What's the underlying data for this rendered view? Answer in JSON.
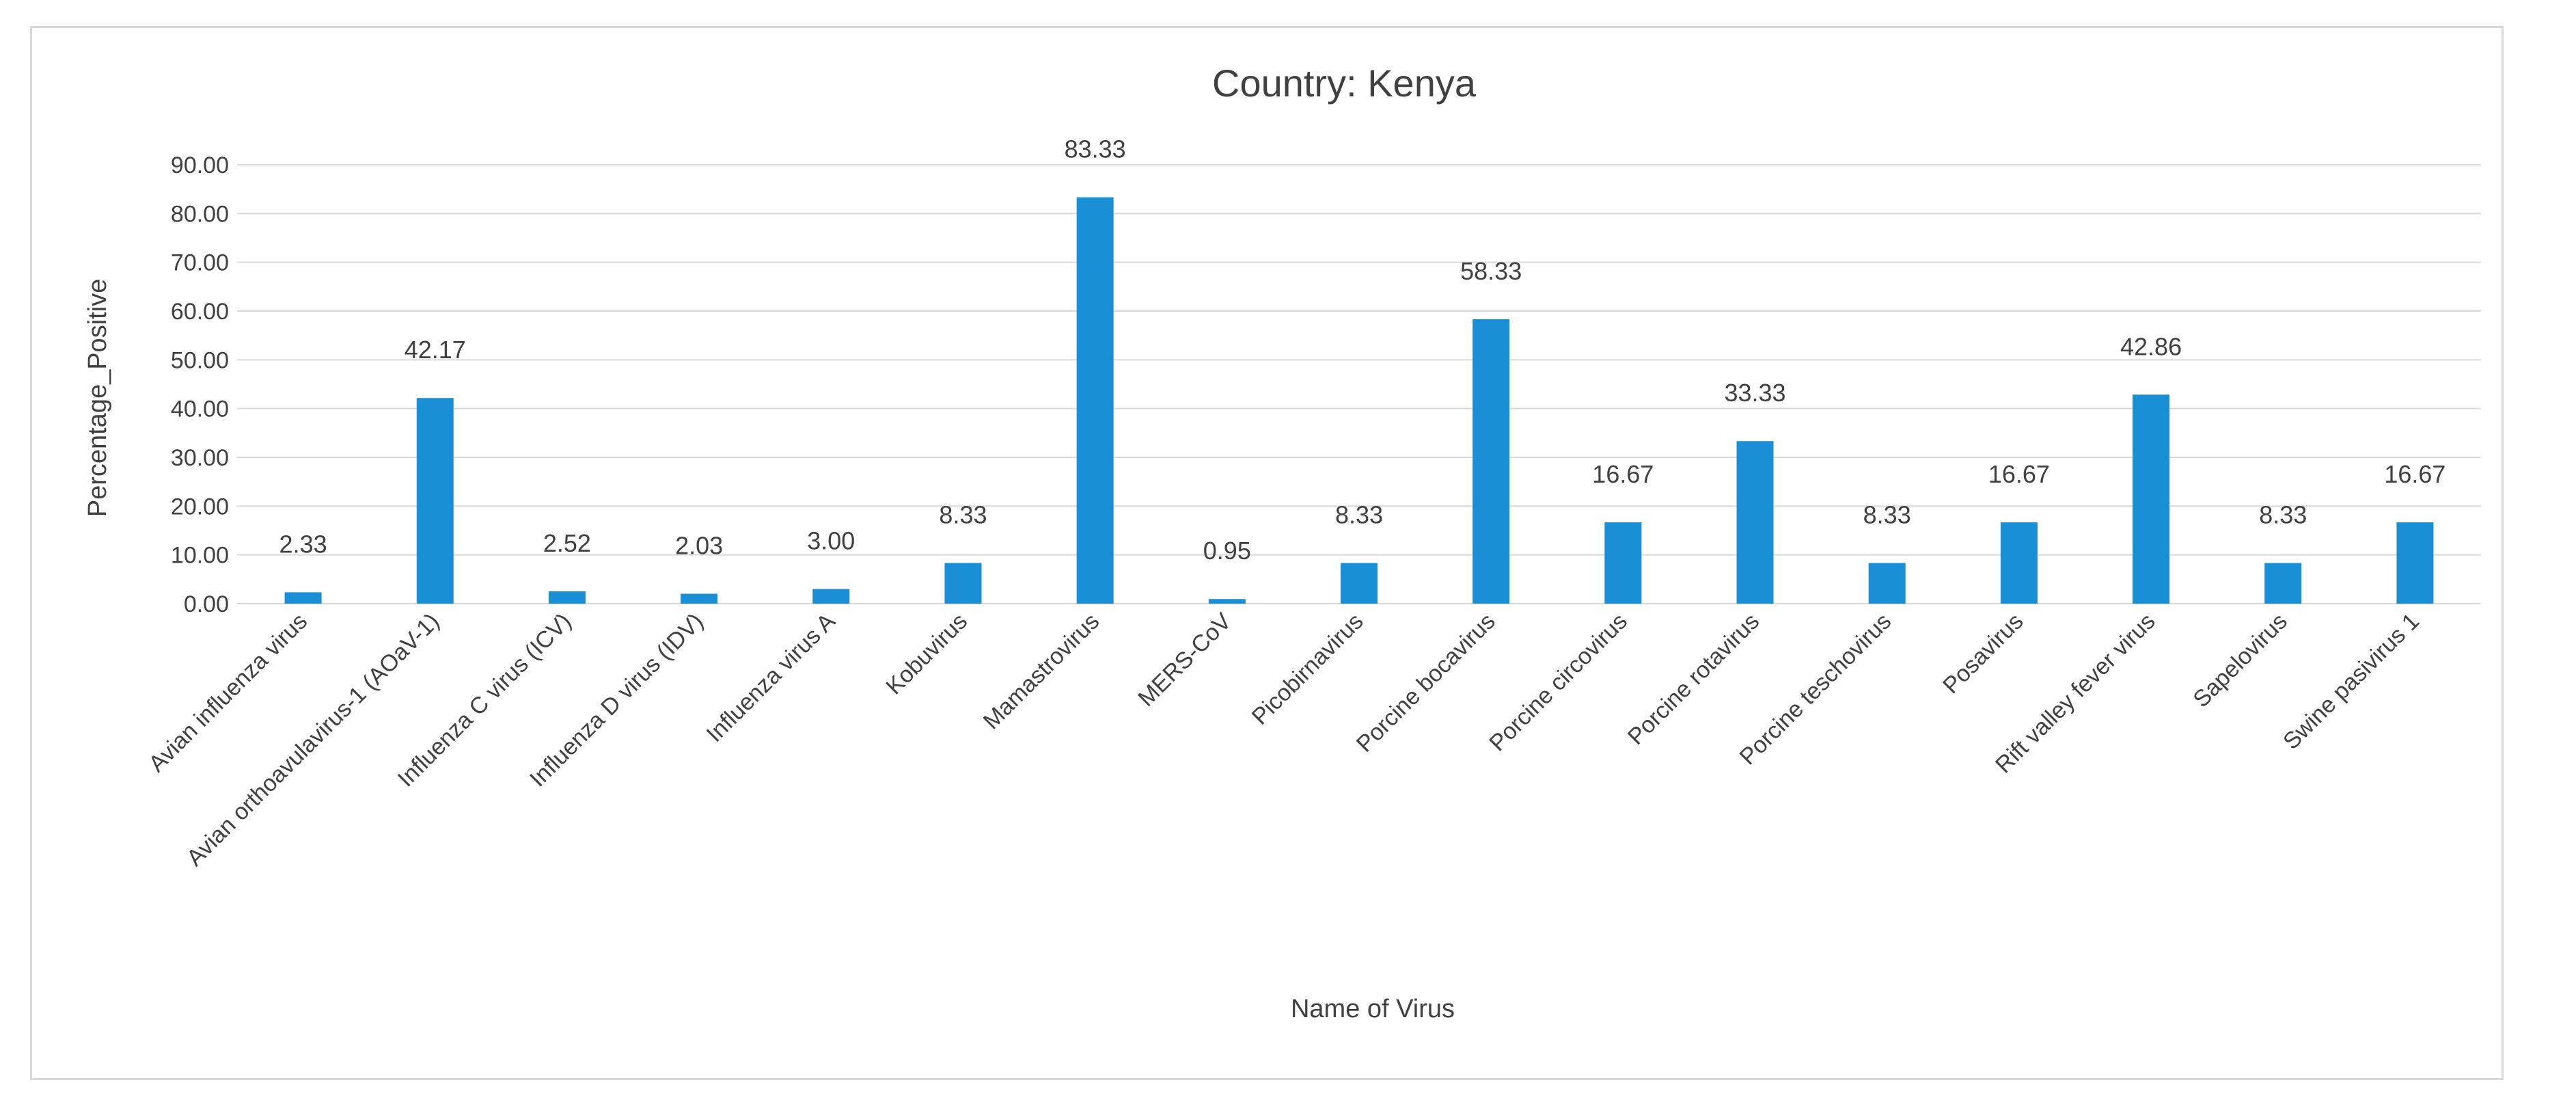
{
  "chart_data": {
    "type": "bar",
    "title": "Country: Kenya",
    "xlabel": "Name of Virus",
    "ylabel": "Percentage_Positive",
    "ylim": [
      0,
      90
    ],
    "ytick_step": 10,
    "ytick_labels": [
      "0.00",
      "10.00",
      "20.00",
      "30.00",
      "40.00",
      "50.00",
      "60.00",
      "70.00",
      "80.00",
      "90.00"
    ],
    "grid": true,
    "categories": [
      "Avian influenza virus",
      "Avian orthoavulavirus-1 (AOaV-1)",
      "Influenza C virus (ICV)",
      "Influenza D virus (IDV)",
      "Influenza virus A",
      "Kobuvirus",
      "Mamastrovirus",
      "MERS-CoV",
      "Picobirnavirus",
      "Porcine bocavirus",
      "Porcine circovirus",
      "Porcine rotavirus",
      "Porcine teschovirus",
      "Posavirus",
      "Rift valley fever virus",
      "Sapelovirus",
      "Swine pasivirus 1"
    ],
    "values": [
      2.33,
      42.17,
      2.52,
      2.03,
      3.0,
      8.33,
      83.33,
      0.95,
      8.33,
      58.33,
      16.67,
      33.33,
      8.33,
      16.67,
      42.86,
      8.33,
      16.67
    ],
    "data_labels": [
      "2.33",
      "42.17",
      "2.52",
      "2.03",
      "3.00",
      "8.33",
      "83.33",
      "0.95",
      "8.33",
      "58.33",
      "16.67",
      "33.33",
      "8.33",
      "16.67",
      "42.86",
      "8.33",
      "16.67"
    ],
    "bar_color": "#1b8fd6",
    "grid_color": "#d9d9d9",
    "text_color": "#404040"
  }
}
